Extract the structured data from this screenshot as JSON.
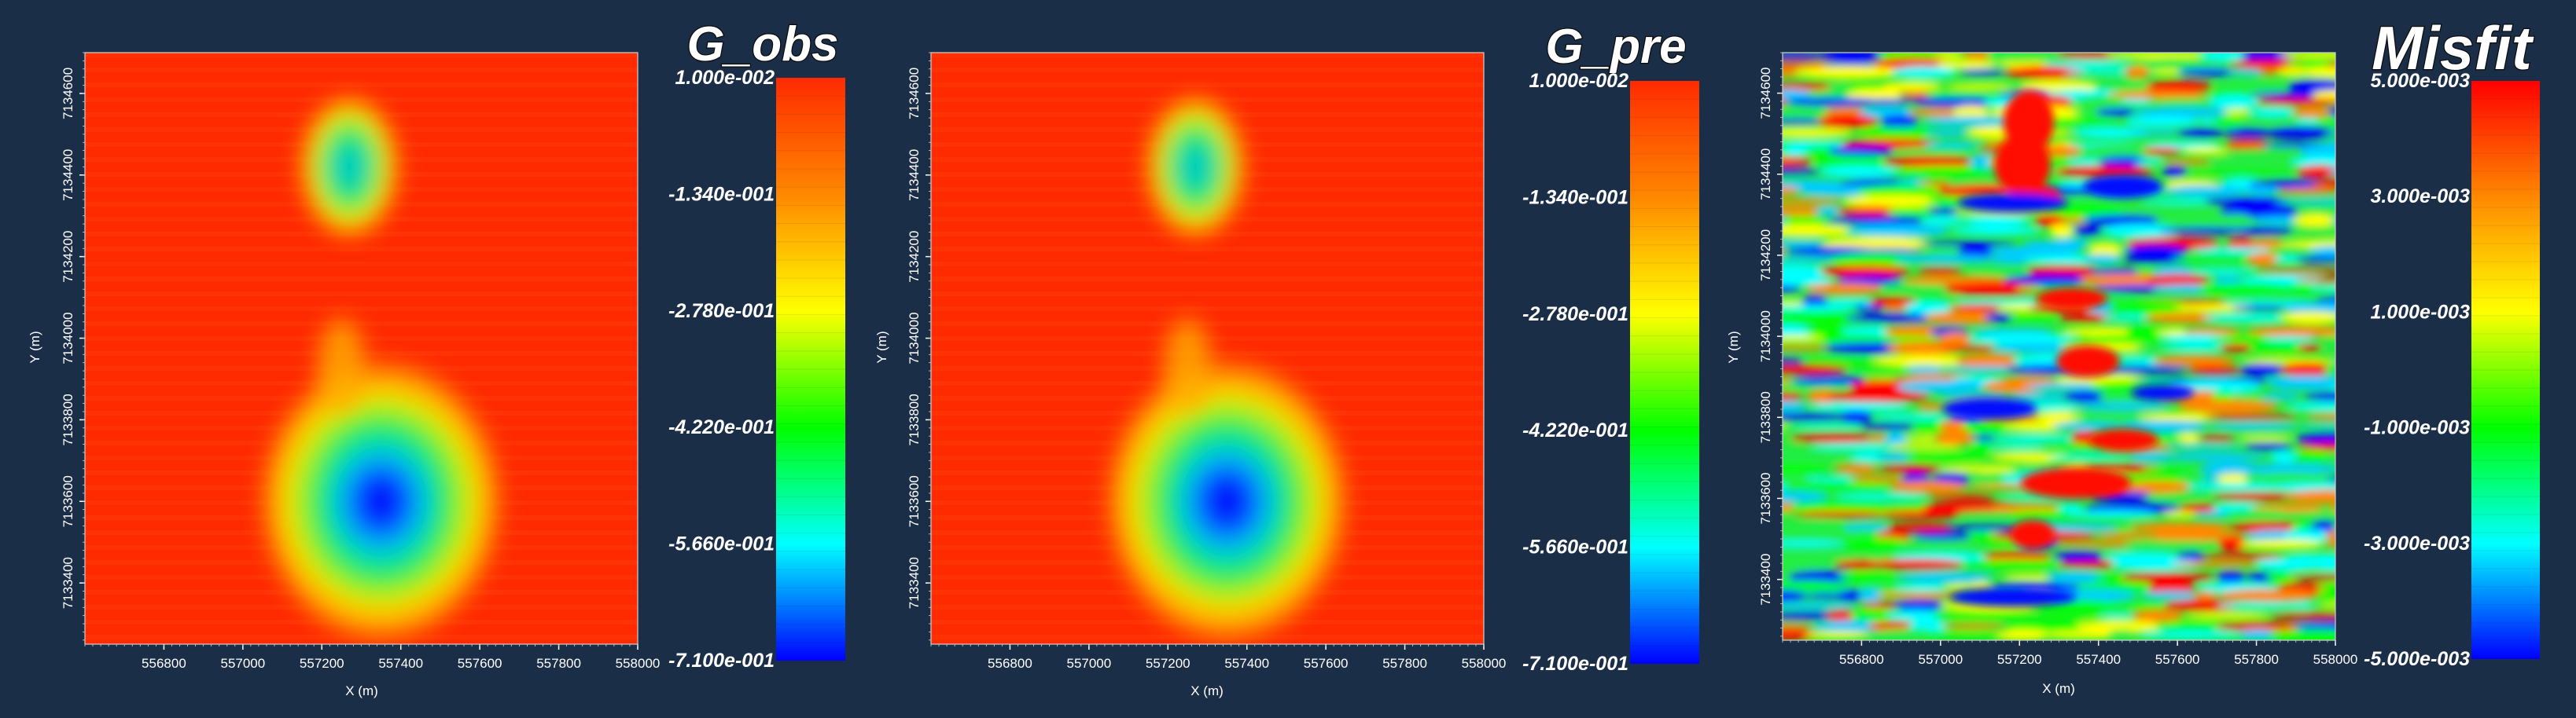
{
  "chart_data": [
    {
      "type": "heatmap",
      "title": "G_obs",
      "xlabel": "X (m)",
      "ylabel": "Y (m)",
      "xlim": [
        556600,
        558000
      ],
      "ylim": [
        7133250,
        7134700
      ],
      "x_ticks": [
        "556800",
        "557000",
        "557200",
        "557400",
        "557600",
        "557800",
        "558000"
      ],
      "y_ticks": [
        "7133400",
        "7133600",
        "7133800",
        "7134000",
        "7134200",
        "7134400",
        "7134600"
      ],
      "colorbar": {
        "range": [
          -0.71,
          0.01
        ],
        "labels": [
          "1.000e-002",
          "-1.340e-001",
          "-2.780e-001",
          "-4.220e-001",
          "-5.660e-001",
          "-7.100e-001"
        ]
      },
      "colormap": [
        "#0000ff",
        "#00ffff",
        "#00ff00",
        "#ffff00",
        "#ff8800",
        "#ff2a00"
      ],
      "anomalies": [
        {
          "x": 557350,
          "y": 7133600,
          "value": -0.71
        },
        {
          "x": 557270,
          "y": 7134420,
          "value": -0.4
        }
      ]
    },
    {
      "type": "heatmap",
      "title": "G_pre",
      "xlabel": "X (m)",
      "ylabel": "Y (m)",
      "xlim": [
        556600,
        558000
      ],
      "ylim": [
        7133250,
        7134700
      ],
      "x_ticks": [
        "556800",
        "557000",
        "557200",
        "557400",
        "557600",
        "557800",
        "558000"
      ],
      "y_ticks": [
        "7133400",
        "7133600",
        "7133800",
        "7134000",
        "7134200",
        "7134400",
        "7134600"
      ],
      "colorbar": {
        "range": [
          -0.71,
          0.01
        ],
        "labels": [
          "1.000e-002",
          "-1.340e-001",
          "-2.780e-001",
          "-4.220e-001",
          "-5.660e-001",
          "-7.100e-001"
        ]
      },
      "colormap": [
        "#0000ff",
        "#00ffff",
        "#00ff00",
        "#ffff00",
        "#ff8800",
        "#ff2a00"
      ],
      "anomalies": [
        {
          "x": 557350,
          "y": 7133600,
          "value": -0.71
        },
        {
          "x": 557270,
          "y": 7134420,
          "value": -0.4
        }
      ]
    },
    {
      "type": "heatmap",
      "title": "Misfit",
      "xlabel": "X (m)",
      "ylabel": "Y (m)",
      "xlim": [
        556600,
        558000
      ],
      "ylim": [
        7133250,
        7134700
      ],
      "x_ticks": [
        "556800",
        "557000",
        "557200",
        "557400",
        "557600",
        "557800",
        "558000"
      ],
      "y_ticks": [
        "7133400",
        "7133600",
        "7133800",
        "7134000",
        "7134200",
        "7134400",
        "7134600"
      ],
      "colorbar": {
        "range": [
          -0.005,
          0.005
        ],
        "labels": [
          "5.000e-003",
          "3.000e-003",
          "1.000e-003",
          "-1.000e-003",
          "-3.000e-003",
          "-5.000e-003"
        ]
      },
      "colormap": [
        "#0000ff",
        "#00ffff",
        "#00ff00",
        "#ffff00",
        "#ff8800",
        "#ff0000"
      ],
      "pattern": "horizontal streaks with red blobs along x≈557300"
    }
  ]
}
